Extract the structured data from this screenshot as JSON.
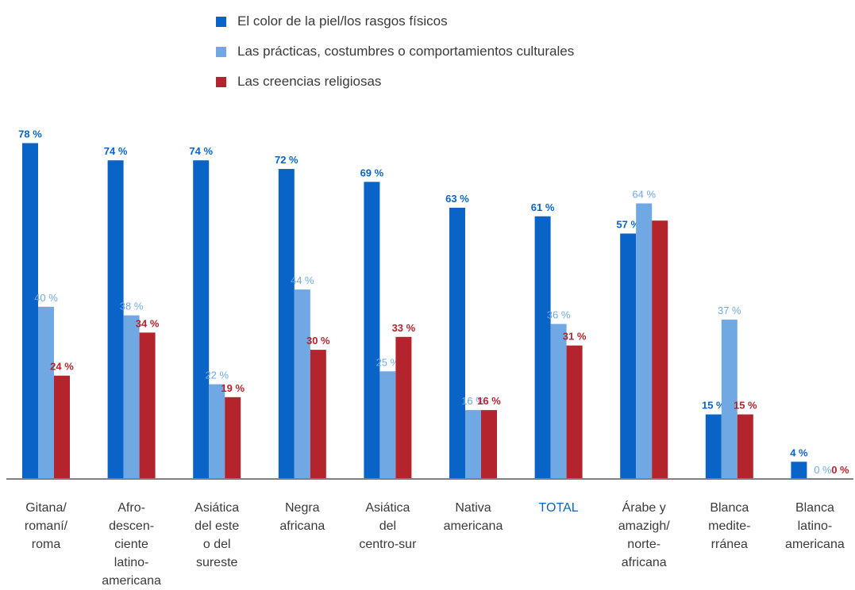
{
  "colors": {
    "skin": "#0a64c8",
    "culture": "#6fa8e2",
    "religion": "#b3242d",
    "total_label": "#0a64c8",
    "text": "#3a3a3a",
    "axis": "#808080"
  },
  "chart_data": {
    "type": "bar",
    "title": "",
    "xlabel": "",
    "ylabel": "",
    "ylim": [
      0,
      80
    ],
    "grid": false,
    "legend_position": "top",
    "categories": [
      [
        "Gitana/",
        "romaní/",
        "roma"
      ],
      [
        "Afro-",
        "descen-",
        "ciente",
        "latino-",
        "americana"
      ],
      [
        "Asiática",
        "del este",
        "o del",
        "sureste"
      ],
      [
        "Negra",
        "africana"
      ],
      [
        "Asiática",
        "del",
        "centro-sur"
      ],
      [
        "Nativa",
        "americana"
      ],
      [
        "TOTAL"
      ],
      [
        "Árabe y",
        "amazigh/",
        "norte-",
        "africana"
      ],
      [
        "Blanca",
        "medite-",
        "rránea"
      ],
      [
        "Blanca",
        "latino-",
        "americana"
      ]
    ],
    "series": [
      {
        "name": "El color de la piel/los rasgos físicos",
        "values": [
          78,
          74,
          74,
          72,
          69,
          63,
          61,
          57,
          15,
          4
        ],
        "labels": [
          "78 %",
          "74 %",
          "74 %",
          "72 %",
          "69 %",
          "63 %",
          "61 %",
          "57 %",
          "15 %",
          "4 %"
        ]
      },
      {
        "name": "Las prácticas, costumbres o comportamientos culturales",
        "values": [
          40,
          38,
          22,
          44,
          25,
          16,
          36,
          64,
          37,
          0
        ],
        "labels": [
          "40 %",
          "38 %",
          "22 %",
          "44 %",
          "25 %",
          "16 %",
          "36 %",
          "64 %",
          "37 %",
          "0 %"
        ]
      },
      {
        "name": "Las creencias religiosas",
        "values": [
          24,
          34,
          19,
          30,
          33,
          16,
          31,
          60,
          15,
          0
        ],
        "labels": [
          "24 %",
          "34 %",
          "19 %",
          "30 %",
          "33 %",
          "16 %",
          "31 %",
          "",
          "15 %",
          "0 %"
        ]
      }
    ]
  }
}
